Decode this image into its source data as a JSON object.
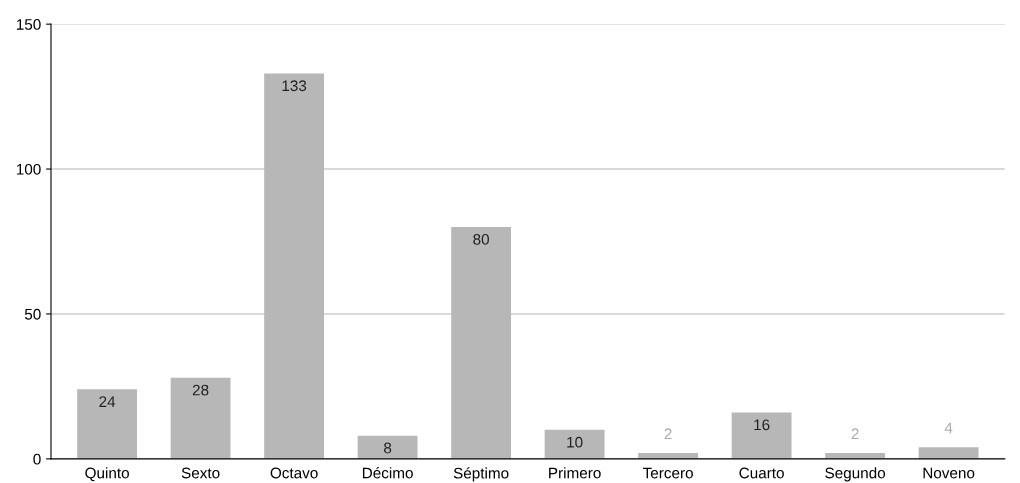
{
  "chart_data": {
    "type": "bar",
    "categories": [
      "Quinto",
      "Sexto",
      "Octavo",
      "Décimo",
      "Séptimo",
      "Primero",
      "Tercero",
      "Cuarto",
      "Segundo",
      "Noveno"
    ],
    "values": [
      24,
      28,
      133,
      8,
      80,
      10,
      2,
      16,
      2,
      4
    ],
    "color": "#b7b7b7",
    "ylim": [
      0,
      150
    ],
    "yticks": [
      0,
      50,
      100,
      150
    ],
    "grid": "y",
    "data_labels": true
  }
}
